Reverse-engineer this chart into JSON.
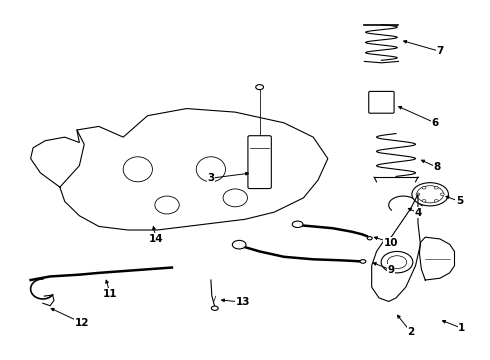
{
  "title": "",
  "background_color": "#ffffff",
  "fig_width": 4.9,
  "fig_height": 3.6,
  "dpi": 100,
  "text_color": "#000000",
  "line_color": "#000000",
  "font_size": 7.5
}
